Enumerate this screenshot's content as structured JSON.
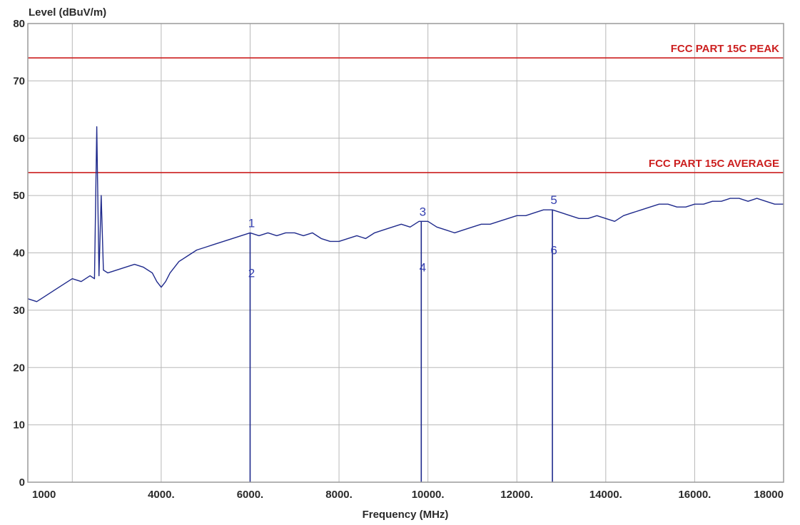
{
  "chart_data": {
    "type": "line",
    "xlabel": "Frequency (MHz)",
    "ylabel": "Level (dBuV/m)",
    "xlim": [
      1000,
      18000
    ],
    "ylim": [
      0,
      80
    ],
    "x_ticks": [
      {
        "value": 1000,
        "label": "1000"
      },
      {
        "value": 4000,
        "label": "4000."
      },
      {
        "value": 6000,
        "label": "6000."
      },
      {
        "value": 8000,
        "label": "8000."
      },
      {
        "value": 10000,
        "label": "10000."
      },
      {
        "value": 12000,
        "label": "12000."
      },
      {
        "value": 14000,
        "label": "14000."
      },
      {
        "value": 16000,
        "label": "16000."
      },
      {
        "value": 18000,
        "label": "18000"
      }
    ],
    "x_gridlines": [
      2000,
      4000,
      6000,
      8000,
      10000,
      12000,
      14000,
      16000
    ],
    "y_ticks": [
      {
        "value": 0,
        "label": "0"
      },
      {
        "value": 10,
        "label": "10"
      },
      {
        "value": 20,
        "label": "20"
      },
      {
        "value": 30,
        "label": "30"
      },
      {
        "value": 40,
        "label": "40"
      },
      {
        "value": 50,
        "label": "50"
      },
      {
        "value": 60,
        "label": "60"
      },
      {
        "value": 70,
        "label": "70"
      },
      {
        "value": 80,
        "label": "80"
      }
    ],
    "grid": true,
    "limit_lines": [
      {
        "label": "FCC PART 15C PEAK",
        "value": 74,
        "color": "#cc1f1f"
      },
      {
        "label": "FCC PART 15C AVERAGE",
        "value": 54,
        "color": "#cc1f1f"
      }
    ],
    "series_color": "#1f2a8c",
    "series": [
      {
        "x": [
          1000,
          1200,
          1400,
          1600,
          1800,
          2000,
          2200,
          2400,
          2500,
          2550,
          2600,
          2650,
          2700,
          2800,
          3000,
          3200,
          3400,
          3600,
          3800,
          3900,
          4000,
          4100,
          4200,
          4400,
          4600,
          4800,
          5000,
          5200,
          5400,
          5600,
          5800,
          6000,
          6200,
          6400,
          6600,
          6800,
          7000,
          7200,
          7400,
          7600,
          7800,
          8000,
          8200,
          8400,
          8600,
          8800,
          9000,
          9200,
          9400,
          9600,
          9800,
          10000,
          10200,
          10400,
          10600,
          10800,
          11000,
          11200,
          11400,
          11600,
          11800,
          12000,
          12200,
          12400,
          12600,
          12800,
          13000,
          13200,
          13400,
          13600,
          13800,
          14000,
          14200,
          14400,
          14600,
          14800,
          15000,
          15200,
          15400,
          15600,
          15800,
          16000,
          16200,
          16400,
          16600,
          16800,
          17000,
          17200,
          17400,
          17600,
          17800,
          18000
        ],
        "values": [
          32,
          31.5,
          32.5,
          33.5,
          34.5,
          35.5,
          35,
          36,
          35.5,
          62,
          36,
          50,
          37,
          36.5,
          37,
          37.5,
          38,
          37.5,
          36.5,
          35,
          34,
          35,
          36.5,
          38.5,
          39.5,
          40.5,
          41,
          41.5,
          42,
          42.5,
          43,
          43.5,
          43,
          43.5,
          43,
          43.5,
          43.5,
          43,
          43.5,
          42.5,
          42,
          42,
          42.5,
          43,
          42.5,
          43.5,
          44,
          44.5,
          45,
          44.5,
          45.5,
          45.5,
          44.5,
          44,
          43.5,
          44,
          44.5,
          45,
          45,
          45.5,
          46,
          46.5,
          46.5,
          47,
          47.5,
          47.5,
          47,
          46.5,
          46,
          46,
          46.5,
          46,
          45.5,
          46.5,
          47,
          47.5,
          48,
          48.5,
          48.5,
          48,
          48,
          48.5,
          48.5,
          49,
          49,
          49.5,
          49.5,
          49,
          49.5,
          49,
          48.5,
          48.5
        ]
      }
    ],
    "markers": [
      {
        "label": "1",
        "x": 6000,
        "y": 43.5,
        "position": "above"
      },
      {
        "label": "2",
        "x": 6000,
        "y": 36.5,
        "position": "below"
      },
      {
        "label": "3",
        "x": 9850,
        "y": 45.5,
        "position": "above"
      },
      {
        "label": "4",
        "x": 9850,
        "y": 37.5,
        "position": "below"
      },
      {
        "label": "5",
        "x": 12800,
        "y": 47.5,
        "position": "above"
      },
      {
        "label": "6",
        "x": 12800,
        "y": 40.5,
        "position": "below"
      }
    ]
  }
}
